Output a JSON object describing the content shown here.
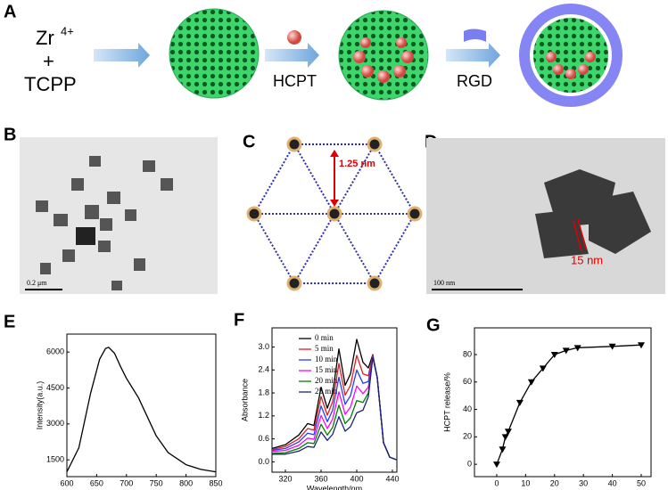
{
  "panel_labels": [
    "A",
    "B",
    "C",
    "D",
    "E",
    "F",
    "G"
  ],
  "scheme": {
    "metal": "Zr",
    "charge": "4+",
    "plus": "+",
    "linker": "TCPP",
    "drug": "HCPT",
    "peptide": "RGD"
  },
  "images": {
    "b_scale": "0.2 μm",
    "c_distance": "1.25 nm",
    "d_size": "15 nm",
    "d_scale": "100 nm"
  },
  "chart_data": [
    {
      "type": "line",
      "xlabel": "Wavelength(nm)",
      "ylabel": "Intensity(a.u.)",
      "x": [
        600,
        620,
        640,
        655,
        665,
        670,
        680,
        690,
        700,
        710,
        720,
        735,
        750,
        770,
        800,
        825,
        850
      ],
      "series": [
        {
          "color": "#000000",
          "values": [
            1000,
            2000,
            4300,
            5700,
            6150,
            6200,
            5950,
            5400,
            4900,
            4500,
            4100,
            3300,
            2500,
            1800,
            1300,
            1100,
            1000
          ]
        }
      ],
      "xlim": [
        600,
        850
      ],
      "ylim": [
        800,
        6750
      ],
      "xticks": [
        600,
        650,
        700,
        750,
        800,
        850
      ],
      "yticks": [
        1500,
        3000,
        4500,
        6000
      ]
    },
    {
      "type": "line",
      "xlabel": "Wavelength/nm",
      "ylabel": "Absorbance",
      "legend": "upper-left",
      "x": [
        305,
        320,
        335,
        345,
        352,
        360,
        367,
        373,
        380,
        387,
        393,
        400,
        407,
        413,
        418,
        423,
        430,
        437,
        445
      ],
      "series": [
        {
          "name": "0 min",
          "color": "#000000",
          "values": [
            0.35,
            0.45,
            0.7,
            1.0,
            0.95,
            1.95,
            1.4,
            1.8,
            2.95,
            2.0,
            2.3,
            3.2,
            2.6,
            2.45,
            2.8,
            2.2,
            0.5,
            0.12,
            0.05
          ]
        },
        {
          "name": "5 min",
          "color": "#e41a1c",
          "values": [
            0.32,
            0.4,
            0.6,
            0.87,
            0.83,
            1.7,
            1.22,
            1.57,
            2.57,
            1.74,
            2.0,
            2.78,
            2.3,
            2.25,
            2.78,
            2.2,
            0.5,
            0.12,
            0.05
          ]
        },
        {
          "name": "10 min",
          "color": "#1f3fff",
          "values": [
            0.3,
            0.35,
            0.52,
            0.75,
            0.71,
            1.46,
            1.05,
            1.35,
            2.21,
            1.5,
            1.73,
            2.4,
            2.05,
            2.1,
            2.76,
            2.2,
            0.5,
            0.12,
            0.05
          ]
        },
        {
          "name": "15 min",
          "color": "#ff00ff",
          "values": [
            0.27,
            0.3,
            0.43,
            0.62,
            0.59,
            1.21,
            0.87,
            1.12,
            1.83,
            1.24,
            1.43,
            1.98,
            1.78,
            1.95,
            2.75,
            2.2,
            0.5,
            0.12,
            0.05
          ]
        },
        {
          "name": "20 min",
          "color": "#008000",
          "values": [
            0.22,
            0.24,
            0.35,
            0.5,
            0.48,
            0.98,
            0.7,
            0.9,
            1.48,
            1.0,
            1.15,
            1.6,
            1.55,
            1.8,
            2.74,
            2.2,
            0.5,
            0.12,
            0.05
          ]
        },
        {
          "name": "25 min",
          "color": "#1a237e",
          "values": [
            0.2,
            0.2,
            0.28,
            0.4,
            0.38,
            0.78,
            0.56,
            0.72,
            1.18,
            0.8,
            0.92,
            1.28,
            1.35,
            1.7,
            2.73,
            2.2,
            0.5,
            0.12,
            0.05
          ]
        }
      ],
      "xlim": [
        305,
        445
      ],
      "ylim": [
        -0.27,
        3.5
      ],
      "xticks": [
        320,
        360,
        400,
        440
      ],
      "yticks": [
        {
          "value": 0,
          "label": "0.0"
        },
        0.6,
        1.2,
        1.8,
        2.4,
        {
          "value": 3,
          "label": "3.0"
        }
      ]
    },
    {
      "type": "line",
      "markers": "triangle-down",
      "xlabel": "Time/h",
      "ylabel": "HCPT release/%",
      "x": [
        0,
        2,
        3,
        4,
        8,
        12,
        16,
        20,
        24,
        28,
        40,
        50
      ],
      "series": [
        {
          "color": "#000000",
          "values": [
            0,
            11,
            20,
            24,
            45,
            60,
            70,
            80,
            83,
            85,
            86,
            87
          ]
        }
      ],
      "xlim": [
        -7.7,
        53.4
      ],
      "ylim": [
        -9,
        99.5
      ],
      "xticks": [
        0,
        10,
        20,
        30,
        40,
        50
      ],
      "yticks": [
        0,
        20,
        40,
        60,
        80
      ]
    }
  ]
}
